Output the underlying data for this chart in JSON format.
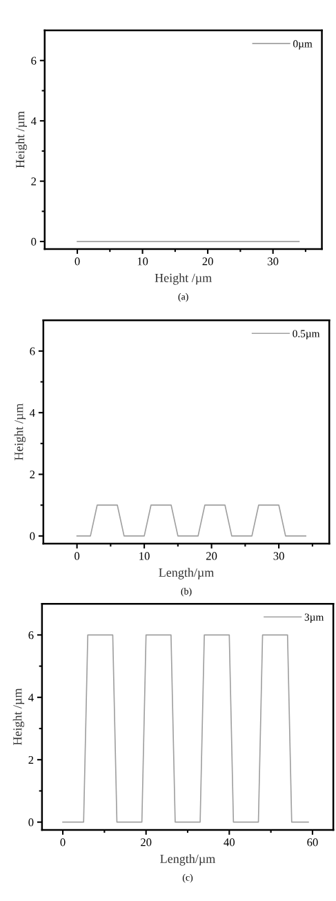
{
  "chart_data": [
    {
      "type": "line",
      "xlabel": "Height /µm",
      "ylabel": "Height /µm",
      "annotations": [
        "(a)"
      ],
      "xlim": [
        -5,
        37.5
      ],
      "ylim": [
        -0.25,
        7
      ],
      "xticks": [
        0,
        {
          "value": 5,
          "label": null
        },
        10,
        {
          "value": 15,
          "label": null
        },
        20,
        {
          "value": 25,
          "label": null
        },
        30,
        {
          "value": 35,
          "label": null
        }
      ],
      "yticks": [
        0,
        {
          "value": 1,
          "label": null
        },
        2,
        {
          "value": 3,
          "label": null
        },
        4,
        {
          "value": 5,
          "label": null
        },
        6
      ],
      "legend": "top right",
      "grid": false,
      "marker": "none",
      "line_style": "solid",
      "series": [
        {
          "name": "0µm",
          "color": "#a0a0a0",
          "x": [
            0,
            34
          ],
          "values": [
            0,
            0
          ]
        }
      ]
    },
    {
      "type": "line",
      "xlabel": "Length/µm",
      "ylabel": "Height /µm",
      "annotations": [
        "(b)"
      ],
      "xlim": [
        -5,
        37.5
      ],
      "ylim": [
        -0.25,
        7
      ],
      "xticks": [
        0,
        {
          "value": 5,
          "label": null
        },
        10,
        {
          "value": 15,
          "label": null
        },
        20,
        {
          "value": 25,
          "label": null
        },
        30,
        {
          "value": 35,
          "label": null
        }
      ],
      "yticks": [
        0,
        {
          "value": 1,
          "label": null
        },
        2,
        {
          "value": 3,
          "label": null
        },
        4,
        {
          "value": 5,
          "label": null
        },
        6
      ],
      "legend": "top right",
      "grid": false,
      "marker": "none",
      "line_style": "solid",
      "series": [
        {
          "name": "0.5µm",
          "color": "#a0a0a0",
          "x": [
            0,
            2,
            3,
            6,
            7,
            10,
            11,
            14,
            15,
            18,
            19,
            22,
            23,
            26,
            27,
            30,
            31,
            34
          ],
          "values": [
            0,
            0,
            1,
            1,
            0,
            0,
            1,
            1,
            0,
            0,
            1,
            1,
            0,
            0,
            1,
            1,
            0,
            0
          ]
        }
      ]
    },
    {
      "type": "line",
      "xlabel": "Length/µm",
      "ylabel": "Height /µm",
      "annotations": [
        "(c)"
      ],
      "xlim": [
        -5,
        65
      ],
      "ylim": [
        -0.25,
        7
      ],
      "xticks": [
        0,
        {
          "value": 10,
          "label": null
        },
        20,
        {
          "value": 30,
          "label": null
        },
        40,
        {
          "value": 50,
          "label": null
        },
        60
      ],
      "yticks": [
        0,
        {
          "value": 1,
          "label": null
        },
        2,
        {
          "value": 3,
          "label": null
        },
        4,
        {
          "value": 5,
          "label": null
        },
        6
      ],
      "legend": "top right",
      "grid": false,
      "marker": "none",
      "line_style": "solid",
      "series": [
        {
          "name": "3µm",
          "color": "#a0a0a0",
          "x": [
            0,
            5,
            6,
            12,
            13,
            19,
            20,
            26,
            27,
            33,
            34,
            40,
            41,
            47,
            48,
            54,
            55,
            59
          ],
          "values": [
            0,
            0,
            6,
            6,
            0,
            0,
            6,
            6,
            0,
            0,
            6,
            6,
            0,
            0,
            6,
            6,
            0,
            0
          ]
        }
      ]
    }
  ]
}
